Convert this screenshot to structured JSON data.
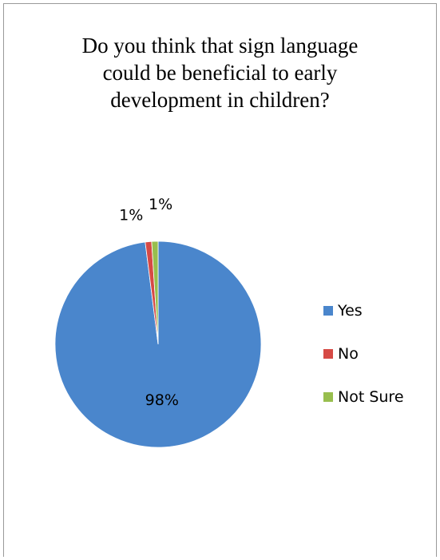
{
  "chart_data": {
    "type": "pie",
    "title": "Do you think that sign language could be beneficial to early development in children?",
    "title_lines": [
      "Do you think that sign language",
      "could be beneficial to early",
      "development in children?"
    ],
    "categories": [
      "Yes",
      "No",
      "Not Sure"
    ],
    "values": [
      98,
      1,
      1
    ],
    "data_labels": [
      "98%",
      "1%",
      "1%"
    ],
    "colors": [
      "#4A86CC",
      "#D64A45",
      "#98BE4E"
    ],
    "legend_position": "right"
  }
}
